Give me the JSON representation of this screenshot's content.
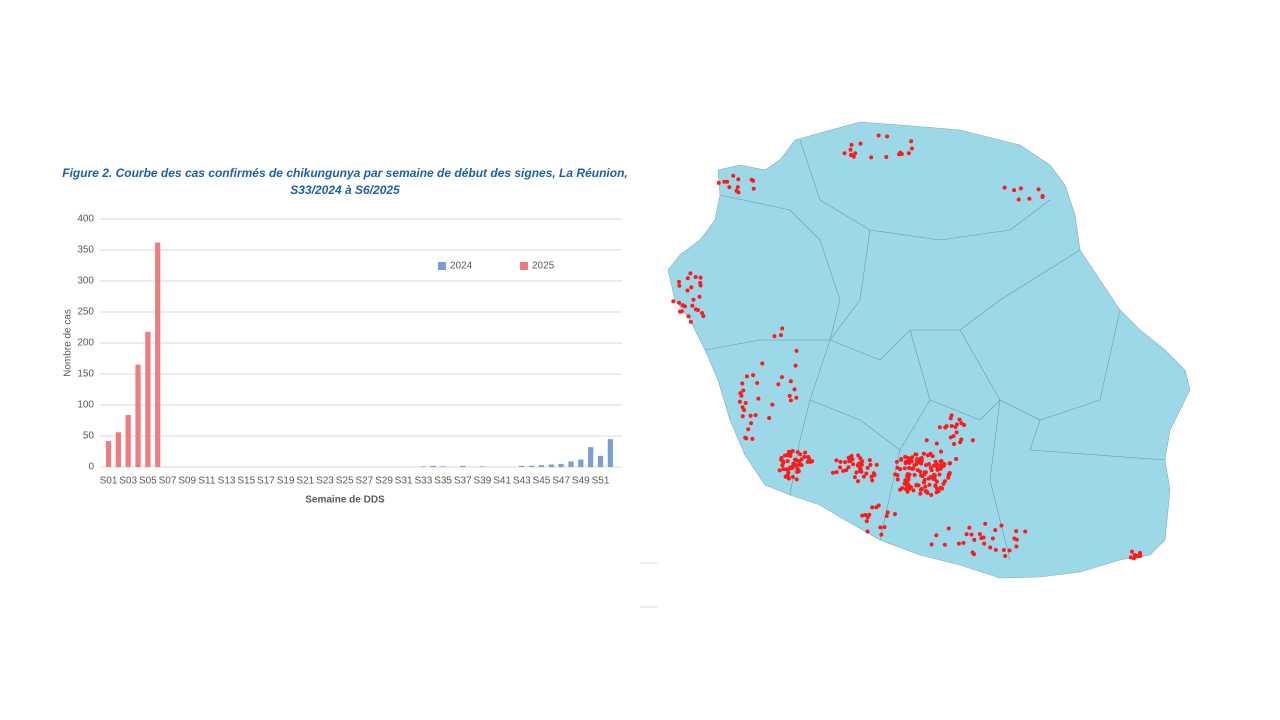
{
  "chart_data": {
    "type": "bar",
    "title": "Figure 2. Courbe des cas confirmés de chikungunya par semaine de début des signes, La Réunion, S33/2024 à S6/2025",
    "x_label": "Semaine de DDS",
    "y_label": "Nombre de cas",
    "categories": [
      "S01",
      null,
      "S03",
      null,
      "S05",
      null,
      "S07",
      null,
      "S09",
      null,
      "S11",
      null,
      "S13",
      null,
      "S15",
      null,
      "S17",
      null,
      "S19",
      null,
      "S21",
      null,
      "S23",
      null,
      "S25",
      null,
      "S27",
      null,
      "S29",
      null,
      "S31",
      null,
      "S33",
      null,
      "S35",
      null,
      "S37",
      null,
      "S39",
      null,
      "S41",
      null,
      "S43",
      null,
      "S45",
      null,
      "S47",
      null,
      "S49",
      null,
      "S51",
      null
    ],
    "series": [
      {
        "name": "2024",
        "color": "#7b9fd4",
        "values": [
          null,
          null,
          null,
          null,
          null,
          null,
          null,
          null,
          null,
          null,
          null,
          null,
          null,
          null,
          null,
          null,
          null,
          null,
          null,
          null,
          null,
          null,
          null,
          null,
          null,
          null,
          null,
          null,
          null,
          null,
          null,
          null,
          1,
          2,
          1,
          0,
          2,
          0,
          1,
          0,
          0,
          0,
          2,
          2,
          3,
          4,
          5,
          9,
          12,
          32,
          18,
          45
        ]
      },
      {
        "name": "2025",
        "color": "#f07b7f",
        "values": [
          42,
          56,
          84,
          165,
          218,
          362,
          null,
          null,
          null,
          null,
          null,
          null,
          null,
          null,
          null,
          null,
          null,
          null,
          null,
          null,
          null,
          null,
          null,
          null,
          null,
          null,
          null,
          null,
          null,
          null,
          null,
          null,
          null,
          null,
          null,
          null,
          null,
          null,
          null,
          null,
          null,
          null,
          null,
          null,
          null,
          null,
          null,
          null,
          null,
          null,
          null,
          null
        ]
      }
    ],
    "ylim": [
      0,
      400
    ],
    "yticks": [
      0,
      50,
      100,
      150,
      200,
      250,
      300,
      350,
      400
    ],
    "grid": true,
    "legend": "top-right"
  }
}
